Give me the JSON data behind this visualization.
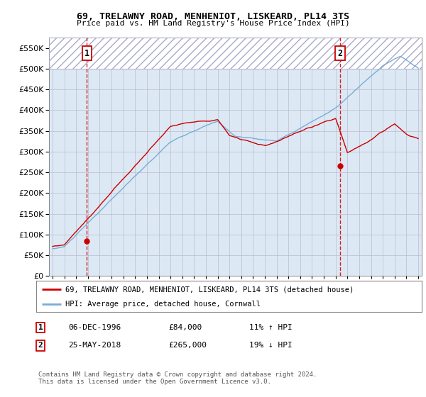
{
  "title": "69, TRELAWNY ROAD, MENHENIOT, LISKEARD, PL14 3TS",
  "subtitle": "Price paid vs. HM Land Registry's House Price Index (HPI)",
  "ylim": [
    0,
    575000
  ],
  "yticks": [
    0,
    50000,
    100000,
    150000,
    200000,
    250000,
    300000,
    350000,
    400000,
    450000,
    500000,
    550000
  ],
  "xlim_start": 1993.7,
  "xlim_end": 2025.3,
  "sale1_date": 1996.92,
  "sale1_price": 84000,
  "sale1_label": "1",
  "sale2_date": 2018.38,
  "sale2_price": 265000,
  "sale2_label": "2",
  "hpi_hatched_threshold": 500000,
  "legend_line1": "69, TRELAWNY ROAD, MENHENIOT, LISKEARD, PL14 3TS (detached house)",
  "legend_line2": "HPI: Average price, detached house, Cornwall",
  "table_row1_num": "1",
  "table_row1_date": "06-DEC-1996",
  "table_row1_price": "£84,000",
  "table_row1_hpi": "11% ↑ HPI",
  "table_row2_num": "2",
  "table_row2_date": "25-MAY-2018",
  "table_row2_price": "£265,000",
  "table_row2_hpi": "19% ↓ HPI",
  "footer": "Contains HM Land Registry data © Crown copyright and database right 2024.\nThis data is licensed under the Open Government Licence v3.0.",
  "line_color_red": "#cc0000",
  "line_color_blue": "#7aadd4",
  "vline_color": "#cc0000",
  "bg_color": "#dce9f5",
  "grid_color": "#bbbbcc"
}
